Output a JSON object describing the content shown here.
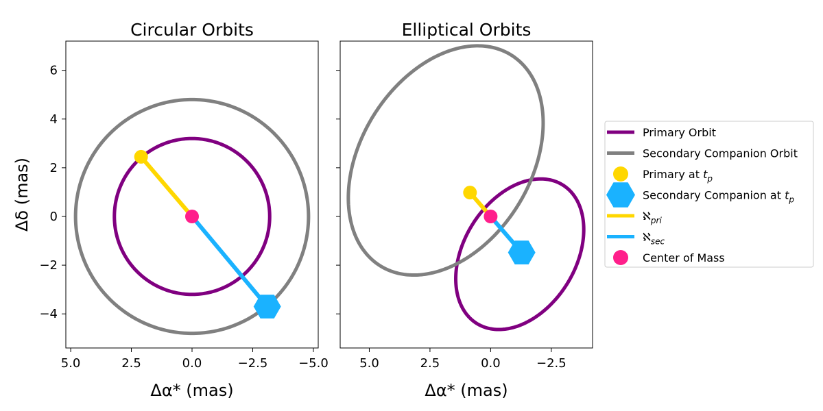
{
  "colors": {
    "primary_orbit": "#800080",
    "secondary_orbit": "#808080",
    "primary_marker": "#ffd700",
    "secondary_marker": "#1ab2ff",
    "com_marker": "#ff1f8b"
  },
  "legend": {
    "entries": [
      {
        "key": "primary_orbit",
        "label": "Primary Orbit",
        "sub": "",
        "kind": "line",
        "color": "#800080"
      },
      {
        "key": "secondary_orbit",
        "label": "Secondary Companion Orbit",
        "sub": "",
        "kind": "line",
        "color": "#808080"
      },
      {
        "key": "primary_tp",
        "label": "Primary at t",
        "sub": "p",
        "kind": "circle",
        "color": "#ffd700"
      },
      {
        "key": "secondary_tp",
        "label": "Secondary Companion at t",
        "sub": "p",
        "kind": "hexagon",
        "color": "#1ab2ff"
      },
      {
        "key": "aleph_pri",
        "label": "ℵ",
        "sub": "pri",
        "kind": "line",
        "color": "#ffd700"
      },
      {
        "key": "aleph_sec",
        "label": "ℵ",
        "sub": "sec",
        "kind": "line",
        "color": "#1ab2ff"
      },
      {
        "key": "com",
        "label": "Center of Mass",
        "sub": "",
        "kind": "circle",
        "color": "#ff1f8b"
      }
    ]
  },
  "chart_data": [
    {
      "type": "line",
      "title": "Circular Orbits",
      "xlabel": "Δα* (mas)",
      "ylabel": "Δδ (mas)",
      "xlim": [
        5.2,
        -5.2
      ],
      "ylim": [
        -5.4,
        7.2
      ],
      "xticks": [
        5.0,
        2.5,
        0.0,
        -2.5,
        -5.0
      ],
      "xtick_labels": [
        "5.0",
        "2.5",
        "0.0",
        "−2.5",
        "−5.0"
      ],
      "yticks": [
        6,
        4,
        2,
        0,
        -2,
        -4
      ],
      "ytick_labels": [
        "6",
        "4",
        "2",
        "0",
        "−2",
        "−4"
      ],
      "orbits": [
        {
          "series": "primary_orbit",
          "center": [
            0.0,
            0.0
          ],
          "a": 3.2,
          "b": 3.2,
          "angle_deg": 0
        },
        {
          "series": "secondary_orbit",
          "center": [
            0.0,
            0.0
          ],
          "a": 4.8,
          "b": 4.8,
          "angle_deg": 0
        }
      ],
      "points": {
        "primary_tp": [
          2.1,
          2.45
        ],
        "secondary_tp": [
          -3.1,
          -3.7
        ],
        "com": [
          0.0,
          0.0
        ]
      }
    },
    {
      "type": "line",
      "title": "Elliptical Orbits",
      "xlabel": "Δα* (mas)",
      "ylabel": "",
      "xlim": [
        6.2,
        -4.2
      ],
      "ylim": [
        -5.4,
        7.2
      ],
      "xticks": [
        5.0,
        2.5,
        0.0,
        -2.5
      ],
      "xtick_labels": [
        "5.0",
        "2.5",
        "0.0",
        "−2.5"
      ],
      "yticks": [
        6,
        4,
        2,
        0,
        -2,
        -4
      ],
      "ytick_labels": [
        "",
        "",
        "",
        "",
        "",
        ""
      ],
      "orbits": [
        {
          "series": "primary_orbit",
          "center": [
            -1.2,
            -1.55
          ],
          "a": 3.35,
          "b": 2.3,
          "angle_deg": 122
        },
        {
          "series": "secondary_orbit",
          "center": [
            1.85,
            2.3
          ],
          "a": 5.1,
          "b": 3.5,
          "angle_deg": 122
        }
      ],
      "points": {
        "primary_tp": [
          0.85,
          0.98
        ],
        "secondary_tp": [
          -1.28,
          -1.48
        ],
        "com": [
          0.0,
          0.0
        ]
      }
    }
  ]
}
